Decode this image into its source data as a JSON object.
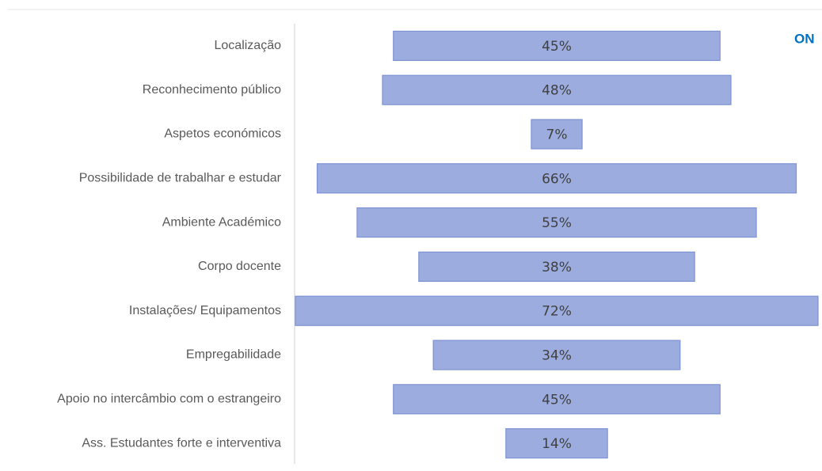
{
  "chart_data": {
    "type": "funnel-bar",
    "annotation": "ON",
    "categories": [
      "Localização",
      "Reconhecimento público",
      "Aspetos económicos",
      "Possibilidade de trabalhar e estudar",
      "Ambiente Académico",
      "Corpo docente",
      "Instalações/ Equipamentos",
      "Empregabilidade",
      "Apoio no intercâmbio com o estrangeiro",
      "Ass. Estudantes forte e interventiva"
    ],
    "values": [
      45,
      48,
      7,
      66,
      55,
      38,
      72,
      34,
      45,
      14
    ],
    "value_labels": [
      "45%",
      "48%",
      "7%",
      "66%",
      "55%",
      "38%",
      "72%",
      "34%",
      "45%",
      "14%"
    ],
    "color": "#9cacde"
  }
}
